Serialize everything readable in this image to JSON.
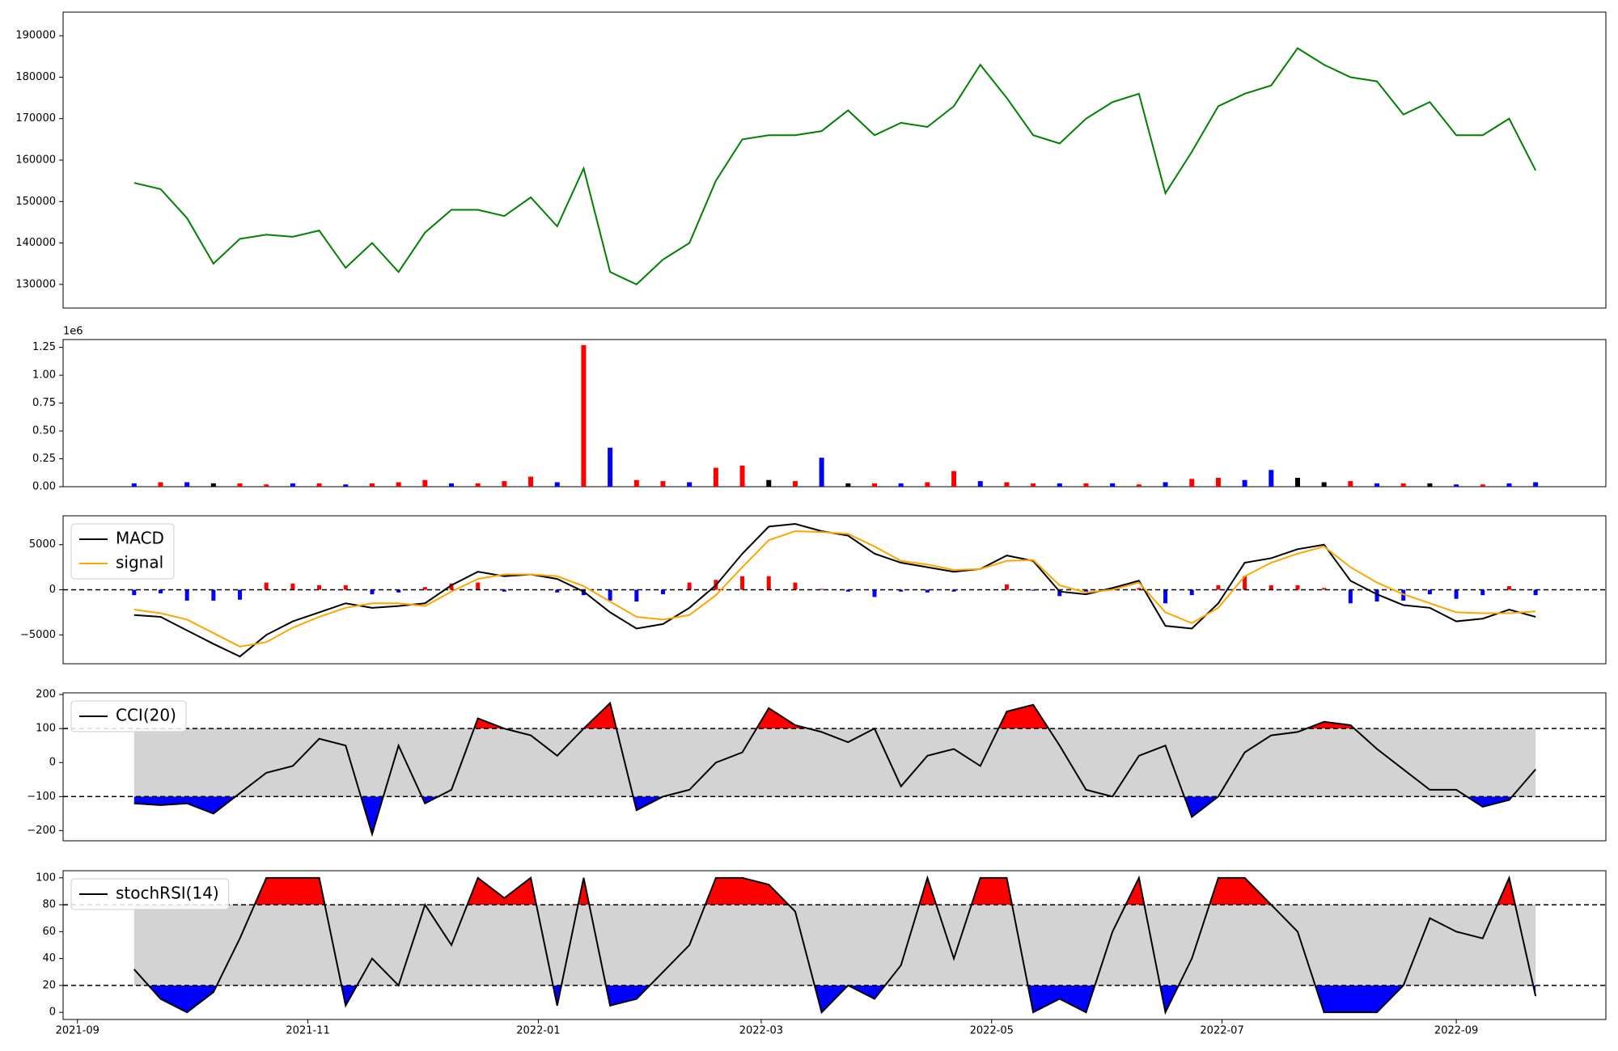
{
  "chart_data": [
    {
      "type": "line",
      "color": "green",
      "values": [
        154500,
        153000,
        146000,
        135000,
        141000,
        142000,
        141500,
        143000,
        134000,
        140000,
        133000,
        142500,
        148000,
        148000,
        146500,
        151000,
        144000,
        158000,
        133000,
        130000,
        136000,
        140000,
        155000,
        165000,
        166000,
        166000,
        167000,
        172000,
        166000,
        169000,
        168000,
        173000,
        183000,
        175000,
        166000,
        164000,
        170000,
        174000,
        176000,
        152000,
        162000,
        173000,
        176000,
        178000,
        187000,
        183000,
        180000,
        179000,
        171000,
        174000,
        166000,
        166000,
        170000,
        157500
      ],
      "ylim": [
        124300,
        195700
      ],
      "yticks": [
        130000,
        140000,
        150000,
        160000,
        170000,
        180000,
        190000
      ]
    },
    {
      "type": "bar",
      "offset_label": "1e6",
      "values": [
        0.03,
        0.04,
        0.04,
        0.03,
        0.03,
        0.02,
        0.03,
        0.03,
        0.02,
        0.03,
        0.04,
        0.06,
        0.03,
        0.03,
        0.05,
        0.09,
        0.04,
        1.27,
        0.35,
        0.06,
        0.05,
        0.04,
        0.17,
        0.19,
        0.06,
        0.05,
        0.26,
        0.03,
        0.03,
        0.03,
        0.04,
        0.14,
        0.05,
        0.04,
        0.03,
        0.03,
        0.03,
        0.03,
        0.02,
        0.04,
        0.07,
        0.08,
        0.06,
        0.15,
        0.08,
        0.04,
        0.05,
        0.03,
        0.03,
        0.03,
        0.02,
        0.02,
        0.03,
        0.04
      ],
      "colors": [
        "blue",
        "red",
        "blue",
        "black",
        "red",
        "red",
        "blue",
        "red",
        "blue",
        "red",
        "red",
        "red",
        "blue",
        "red",
        "red",
        "red",
        "blue",
        "red",
        "blue",
        "red",
        "red",
        "blue",
        "red",
        "red",
        "black",
        "red",
        "blue",
        "black",
        "red",
        "blue",
        "red",
        "red",
        "blue",
        "red",
        "red",
        "blue",
        "red",
        "blue",
        "red",
        "blue",
        "red",
        "red",
        "blue",
        "blue",
        "black",
        "black",
        "red",
        "blue",
        "red",
        "black",
        "blue",
        "red",
        "blue",
        "blue"
      ],
      "ylim": [
        0,
        1.32
      ],
      "yticks": [
        {
          "value": 0,
          "label": "0.00"
        },
        {
          "value": 0.25,
          "label": "0.25"
        },
        {
          "value": 0.5,
          "label": "0.50"
        },
        {
          "value": 0.75,
          "label": "0.75"
        },
        {
          "value": 1,
          "label": "1.00"
        },
        {
          "value": 1.25,
          "label": "1.25"
        }
      ]
    },
    {
      "type": "combo",
      "legend": "upper left",
      "hlines": [
        0
      ],
      "series": [
        {
          "name": "MACD",
          "color": "black",
          "values": [
            -2800,
            -3000,
            -4500,
            -6000,
            -7400,
            -5000,
            -3500,
            -2500,
            -1500,
            -2000,
            -1800,
            -1500,
            500,
            2000,
            1500,
            1700,
            1200,
            -200,
            -2500,
            -4300,
            -3800,
            -2000,
            500,
            4000,
            7000,
            7300,
            6500,
            6000,
            4000,
            3000,
            2500,
            2000,
            2300,
            3800,
            3200,
            -200,
            -500,
            200,
            1000,
            -4000,
            -4300,
            -1500,
            3000,
            3500,
            4500,
            5000,
            1000,
            -500,
            -1700,
            -2000,
            -3500,
            -3200,
            -2200,
            -3000
          ]
        },
        {
          "name": "signal",
          "color": "orange",
          "values": [
            -2200,
            -2600,
            -3300,
            -4800,
            -6300,
            -5800,
            -4200,
            -3000,
            -2000,
            -1500,
            -1500,
            -1800,
            -200,
            1200,
            1700,
            1700,
            1500,
            400,
            -1300,
            -3000,
            -3300,
            -2800,
            -600,
            2500,
            5500,
            6500,
            6400,
            6200,
            4800,
            3200,
            2800,
            2200,
            2300,
            3200,
            3300,
            500,
            -300,
            0,
            800,
            -2500,
            -3700,
            -2000,
            1500,
            3000,
            4000,
            4800,
            2500,
            800,
            -500,
            -1500,
            -2500,
            -2600,
            -2600,
            -2400
          ]
        }
      ],
      "histogram": {
        "up_color": "red",
        "down_color": "blue",
        "values": [
          -600,
          -400,
          -1200,
          -1200,
          -1100,
          800,
          700,
          500,
          500,
          -500,
          -300,
          300,
          700,
          800,
          -200,
          0,
          -300,
          -600,
          -1200,
          -1300,
          -500,
          800,
          1100,
          1500,
          1500,
          800,
          100,
          -200,
          -800,
          -200,
          -300,
          -200,
          0,
          600,
          -100,
          -700,
          -200,
          200,
          200,
          -1500,
          -600,
          500,
          1500,
          500,
          500,
          200,
          -1500,
          -1300,
          -1200,
          -500,
          -1000,
          -600,
          400,
          -600
        ]
      },
      "ylim": [
        -8200,
        8200
      ],
      "yticks": [
        {
          "value": -5000,
          "label": "−5000"
        },
        0,
        5000
      ]
    },
    {
      "type": "oscillator",
      "legend": "upper left",
      "thresholds": [
        100,
        -100
      ],
      "band_color": "lightgray",
      "upper_color": "red",
      "lower_color": "blue",
      "series": [
        {
          "name": "CCI(20)",
          "color": "black",
          "values": [
            -120,
            -125,
            -120,
            -150,
            -90,
            -30,
            -10,
            70,
            50,
            -210,
            50,
            -120,
            -80,
            130,
            100,
            80,
            20,
            100,
            175,
            -140,
            -100,
            -80,
            0,
            30,
            160,
            110,
            90,
            60,
            100,
            -70,
            20,
            40,
            -10,
            150,
            170,
            50,
            -80,
            -100,
            20,
            50,
            -160,
            -100,
            30,
            80,
            90,
            120,
            110,
            40,
            -20,
            -80,
            -80,
            -130,
            -110,
            -20
          ]
        }
      ],
      "ylim": [
        -230,
        205
      ],
      "yticks": [
        {
          "value": -200,
          "label": "−200"
        },
        {
          "value": -100,
          "label": "−100"
        },
        0,
        100,
        200
      ]
    },
    {
      "type": "oscillator",
      "legend": "upper left",
      "thresholds": [
        80,
        20
      ],
      "band_color": "lightgray",
      "upper_color": "red",
      "lower_color": "blue",
      "series": [
        {
          "name": "stochRSI(14)",
          "color": "black",
          "values": [
            32,
            10,
            0,
            15,
            55,
            100,
            100,
            100,
            5,
            40,
            20,
            80,
            50,
            100,
            85,
            100,
            5,
            100,
            5,
            10,
            30,
            50,
            100,
            100,
            95,
            75,
            0,
            20,
            10,
            35,
            100,
            40,
            100,
            100,
            0,
            10,
            0,
            60,
            100,
            0,
            40,
            100,
            100,
            80,
            60,
            0,
            0,
            0,
            20,
            70,
            60,
            55,
            100,
            12
          ]
        }
      ],
      "ylim": [
        -5.3,
        105.3
      ],
      "yticks": [
        0,
        20,
        40,
        60,
        80,
        100
      ],
      "x": [
        15,
        22,
        29,
        36,
        43,
        50,
        57,
        64,
        71,
        78,
        85,
        92,
        99,
        106,
        113,
        120,
        127,
        134,
        141,
        148,
        155,
        162,
        169,
        176,
        183,
        190,
        197,
        204,
        211,
        218,
        225,
        232,
        239,
        246,
        253,
        260,
        267,
        274,
        281,
        288,
        295,
        302,
        309,
        316,
        323,
        330,
        337,
        344,
        351,
        358,
        365,
        372,
        379,
        386
      ],
      "xlim": [
        -3.8,
        404.6
      ],
      "xticks": [
        {
          "value": 0,
          "label": "2021-09"
        },
        {
          "value": 61,
          "label": "2021-11"
        },
        {
          "value": 122,
          "label": "2022-01"
        },
        {
          "value": 181,
          "label": "2022-03"
        },
        {
          "value": 242,
          "label": "2022-05"
        },
        {
          "value": 303,
          "label": "2022-07"
        },
        {
          "value": 365,
          "label": "2022-09"
        }
      ]
    }
  ]
}
